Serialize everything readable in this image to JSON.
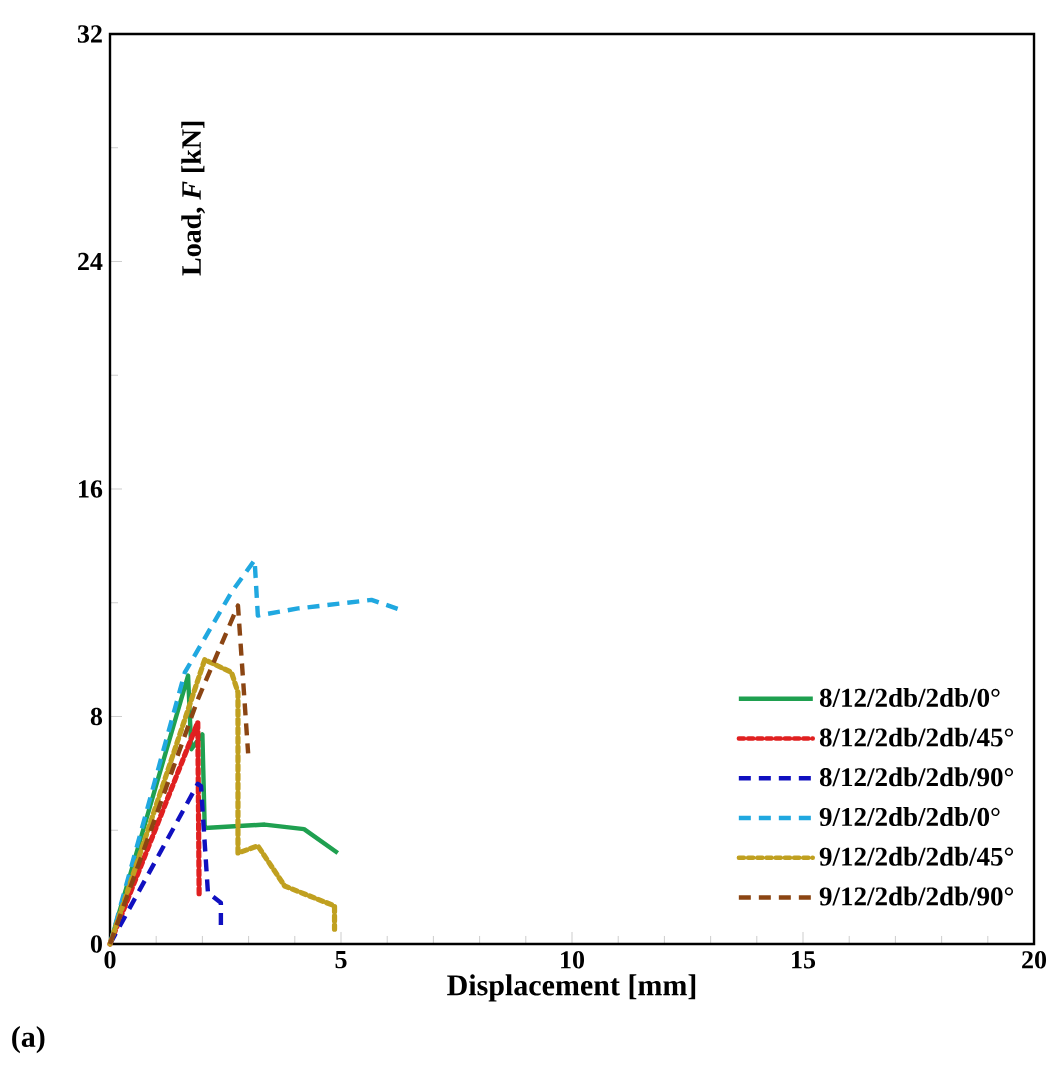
{
  "chart_data": {
    "type": "line",
    "xlabel": "Displacement  [mm]",
    "ylabel": "Load, *F* [kN]",
    "xlim": [
      0,
      20
    ],
    "ylim": [
      0,
      32
    ],
    "xticks": [
      0,
      5,
      10,
      15,
      20
    ],
    "yticks": [
      0,
      8,
      16,
      24,
      32
    ],
    "grid": false,
    "legend": "bottom right",
    "marker": "none",
    "annotations": [
      "(a)"
    ],
    "series": [
      {
        "name": "8/12/2db/2db/0°",
        "color": "#1fa050",
        "line_style": "solid",
        "x": [
          0,
          1.69,
          1.76,
          2.0,
          2.05,
          3.35,
          4.2,
          4.93
        ],
        "values": [
          0,
          9.44,
          6.85,
          7.37,
          4.08,
          4.2,
          4.04,
          3.2
        ]
      },
      {
        "name": "8/12/2db/2db/45°",
        "color": "#e02020",
        "line_style": "dotted",
        "x": [
          0,
          1.9,
          1.93
        ],
        "values": [
          0,
          7.8,
          1.64
        ]
      },
      {
        "name": "8/12/2db/2db/90°",
        "color": "#1010c0",
        "line_style": "dashed",
        "x": [
          0,
          1.9,
          1.97,
          2.12,
          2.4,
          2.4
        ],
        "values": [
          0,
          5.63,
          5.55,
          1.8,
          1.45,
          0.45
        ]
      },
      {
        "name": "9/12/2db/2db/0°",
        "color": "#20a8e0",
        "line_style": "dashed",
        "x": [
          0,
          1.62,
          2.63,
          3.13,
          3.2,
          4.07,
          5.66,
          6.38
        ],
        "values": [
          0,
          9.55,
          12.37,
          13.5,
          11.55,
          11.8,
          12.1,
          11.7
        ]
      },
      {
        "name": "9/12/2db/2db/45°",
        "color": "#c0a020",
        "line_style": "dotted",
        "x": [
          0,
          2.05,
          2.63,
          2.77,
          2.77,
          3.2,
          3.78,
          4.5,
          4.86,
          4.86
        ],
        "values": [
          0,
          10.0,
          9.55,
          8.85,
          3.2,
          3.45,
          2.04,
          1.57,
          1.34,
          0.52
        ]
      },
      {
        "name": "9/12/2db/2db/90°",
        "color": "#8b4513",
        "line_style": "dashed",
        "x": [
          0,
          1.9,
          2.77,
          2.99
        ],
        "values": [
          0,
          8.6,
          11.9,
          6.7
        ]
      }
    ]
  }
}
